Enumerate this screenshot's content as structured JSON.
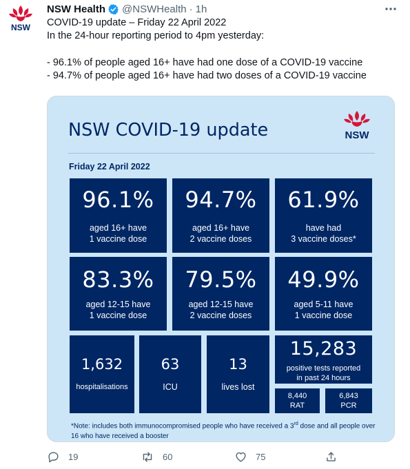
{
  "tweet": {
    "account_name": "NSW Health",
    "handle": "@NSWHealth",
    "separator": "·",
    "time": "1h",
    "avatar_text": "NSW",
    "lines": [
      "COVID-19 update – Friday 22 April 2022",
      "In the 24-hour reporting period to 4pm yesterday:",
      "",
      "- 96.1% of people aged 16+ have had one dose of a COVID-19 vaccine",
      "- 94.7% of people aged 16+ have had two doses of a COVID-19 vaccine"
    ]
  },
  "card": {
    "title": "NSW COVID-19 update",
    "logo_text": "NSW",
    "date": "Friday 22 April 2022",
    "stats_row1": [
      {
        "value": "96.1%",
        "line1": "aged 16+ have",
        "line2": "1 vaccine dose"
      },
      {
        "value": "94.7%",
        "line1": "aged 16+ have",
        "line2": "2 vaccine doses"
      },
      {
        "value": "61.9%",
        "line1": "have had",
        "line2": "3 vaccine doses*"
      }
    ],
    "stats_row2": [
      {
        "value": "83.3%",
        "line1": "aged 12-15 have",
        "line2": "1 vaccine dose"
      },
      {
        "value": "79.5%",
        "line1": "aged 12-15 have",
        "line2": "2 vaccine doses"
      },
      {
        "value": "49.9%",
        "line1": "aged 5-11 have",
        "line2": "1 vaccine dose"
      }
    ],
    "hospitalisations": {
      "value": "1,632",
      "label": "hospitalisations"
    },
    "icu": {
      "value": "63",
      "label": "ICU"
    },
    "deaths": {
      "value": "13",
      "label": "lives lost"
    },
    "positive_tests": {
      "value": "15,283",
      "line1": "positive tests reported",
      "line2": "in past 24 hours"
    },
    "rat": {
      "value": "8,440",
      "label": "RAT"
    },
    "pcr": {
      "value": "6,843",
      "label": "PCR"
    },
    "note_part1": "*Note: includes both immunocompromised people who have received a 3",
    "note_sup": "rd",
    "note_part2": " dose and all people over 16 who have received a booster"
  },
  "actions": {
    "replies": "19",
    "retweets": "60",
    "likes": "75"
  },
  "colors": {
    "navy": "#002664",
    "card_bg": "#cce6f7",
    "nsw_red": "#d7153a",
    "verified_blue": "#1d9bf0",
    "muted": "#536471"
  },
  "icons": {
    "avatar": "waratah-logo-icon",
    "verified": "verified-badge-icon",
    "more": "more-options-icon",
    "reply": "reply-icon",
    "retweet": "retweet-icon",
    "like": "like-icon",
    "share": "share-icon"
  }
}
